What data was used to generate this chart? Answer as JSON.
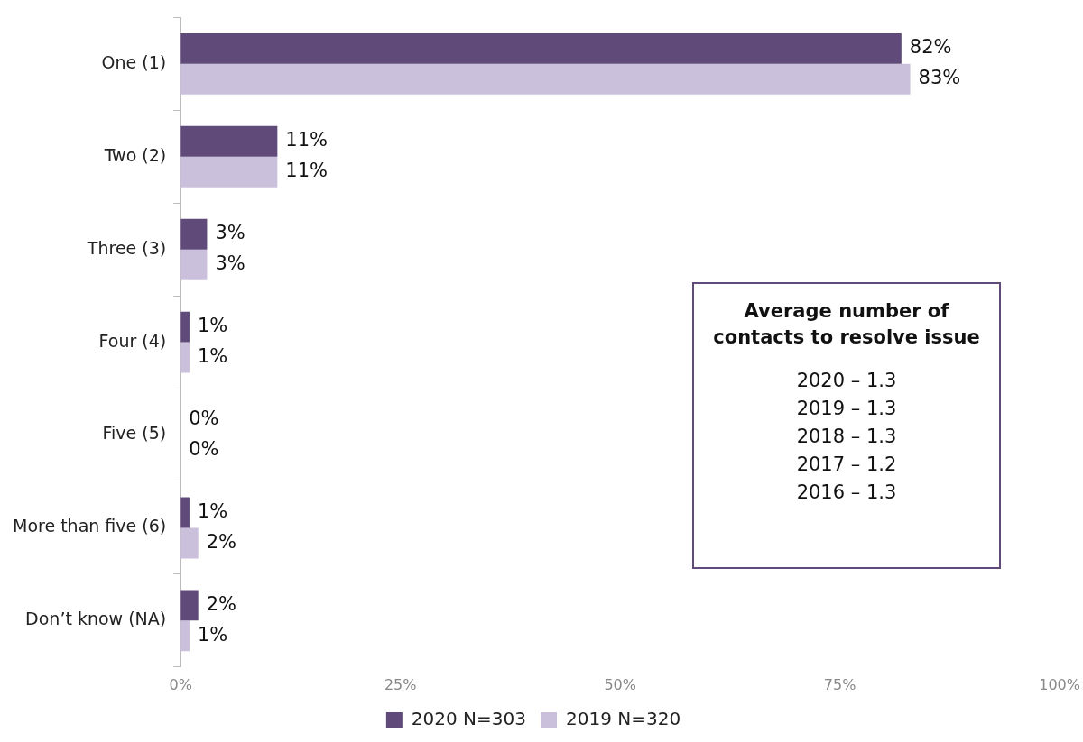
{
  "chart_data": {
    "type": "bar",
    "orientation": "horizontal",
    "categories": [
      "One (1)",
      "Two (2)",
      "Three (3)",
      "Four (4)",
      "Five (5)",
      "More than five (6)",
      "Don’t know (NA)"
    ],
    "series": [
      {
        "name": "2020 N=303",
        "color": "#5f4a7a",
        "values": [
          82,
          11,
          3,
          1,
          0,
          1,
          2
        ],
        "value_labels": [
          "82%",
          "11%",
          "3%",
          "1%",
          "0%",
          "1%",
          "2%"
        ]
      },
      {
        "name": "2019 N=320",
        "color": "#cbc0dc",
        "values": [
          83,
          11,
          3,
          1,
          0,
          2,
          1
        ],
        "value_labels": [
          "83%",
          "11%",
          "3%",
          "1%",
          "0%",
          "2%",
          "1%"
        ]
      }
    ],
    "xlim": [
      0,
      100
    ],
    "xticks": [
      {
        "value": 0,
        "label": "0%"
      },
      {
        "value": 25,
        "label": "25%"
      },
      {
        "value": 50,
        "label": "50%"
      },
      {
        "value": 75,
        "label": "75%"
      },
      {
        "value": 100,
        "label": "100%"
      }
    ],
    "legend": "bottom",
    "annotations": [
      "Average number of contacts to resolve issue",
      "2020 – 1.3",
      "2019 – 1.3",
      "2018 – 1.3",
      "2017 – 1.2",
      "2016 – 1.3"
    ]
  }
}
